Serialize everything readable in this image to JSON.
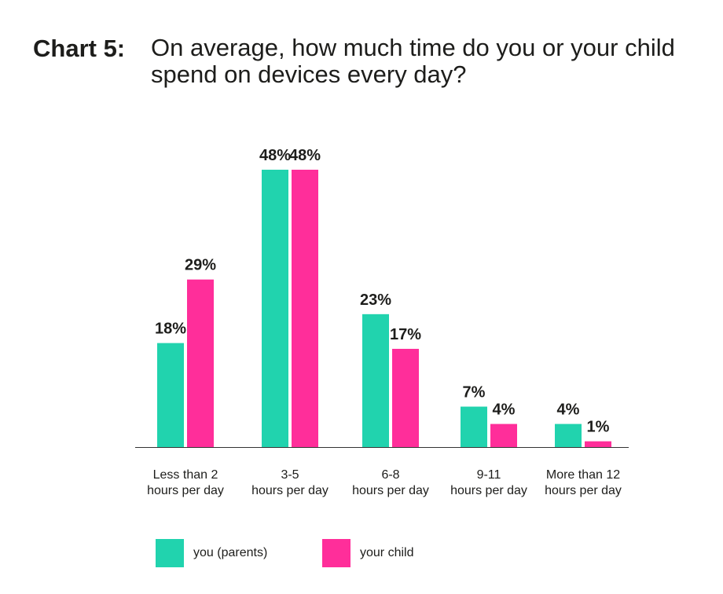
{
  "header": {
    "chart_number": "Chart 5:",
    "question": "On average, how much time do you or your child spend on devices every day?"
  },
  "colors": {
    "parents": "#21d3ae",
    "child": "#ff2e9a",
    "axis": "#333333"
  },
  "chart_data": {
    "type": "bar",
    "title": "On average, how much time do you or your child spend on devices every day?",
    "categories": [
      [
        "Less than 2",
        "hours per day"
      ],
      [
        "3-5",
        "hours per day"
      ],
      [
        "6-8",
        "hours per day"
      ],
      [
        "9-11",
        "hours per day"
      ],
      [
        "More than 12",
        "hours per day"
      ]
    ],
    "series": [
      {
        "name": "you (parents)",
        "color": "#21d3ae",
        "values": [
          18,
          48,
          23,
          7,
          4
        ],
        "labels": [
          "18%",
          "48%",
          "23%",
          "7%",
          "4%"
        ]
      },
      {
        "name": "your child",
        "color": "#ff2e9a",
        "values": [
          29,
          48,
          17,
          4,
          1
        ],
        "labels": [
          "29%",
          "48%",
          "17%",
          "4%",
          "1%"
        ]
      }
    ],
    "ylim": [
      0,
      48
    ],
    "legend_position": "bottom-left",
    "grid": false
  }
}
